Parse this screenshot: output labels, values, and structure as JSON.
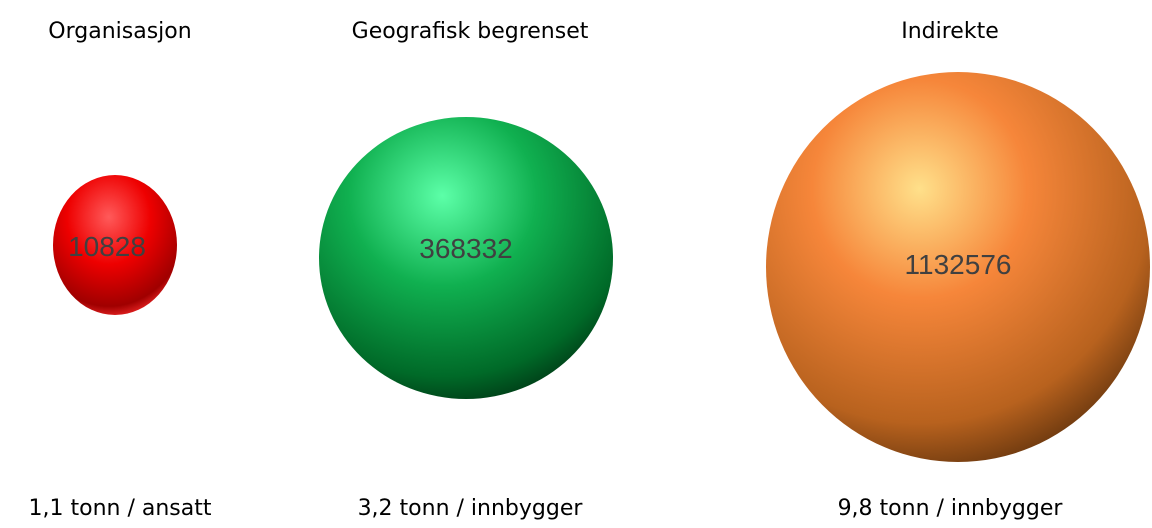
{
  "items": [
    {
      "title": "Organisasjon",
      "value": 10828,
      "label": "1,1 tonn / ansatt"
    },
    {
      "title": "Geografisk begrenset",
      "value": 368332,
      "label": "3,2 tonn / innbygger"
    },
    {
      "title": "Indirekte",
      "value": 1132576,
      "label": "9,8 tonn / innbygger"
    }
  ]
}
